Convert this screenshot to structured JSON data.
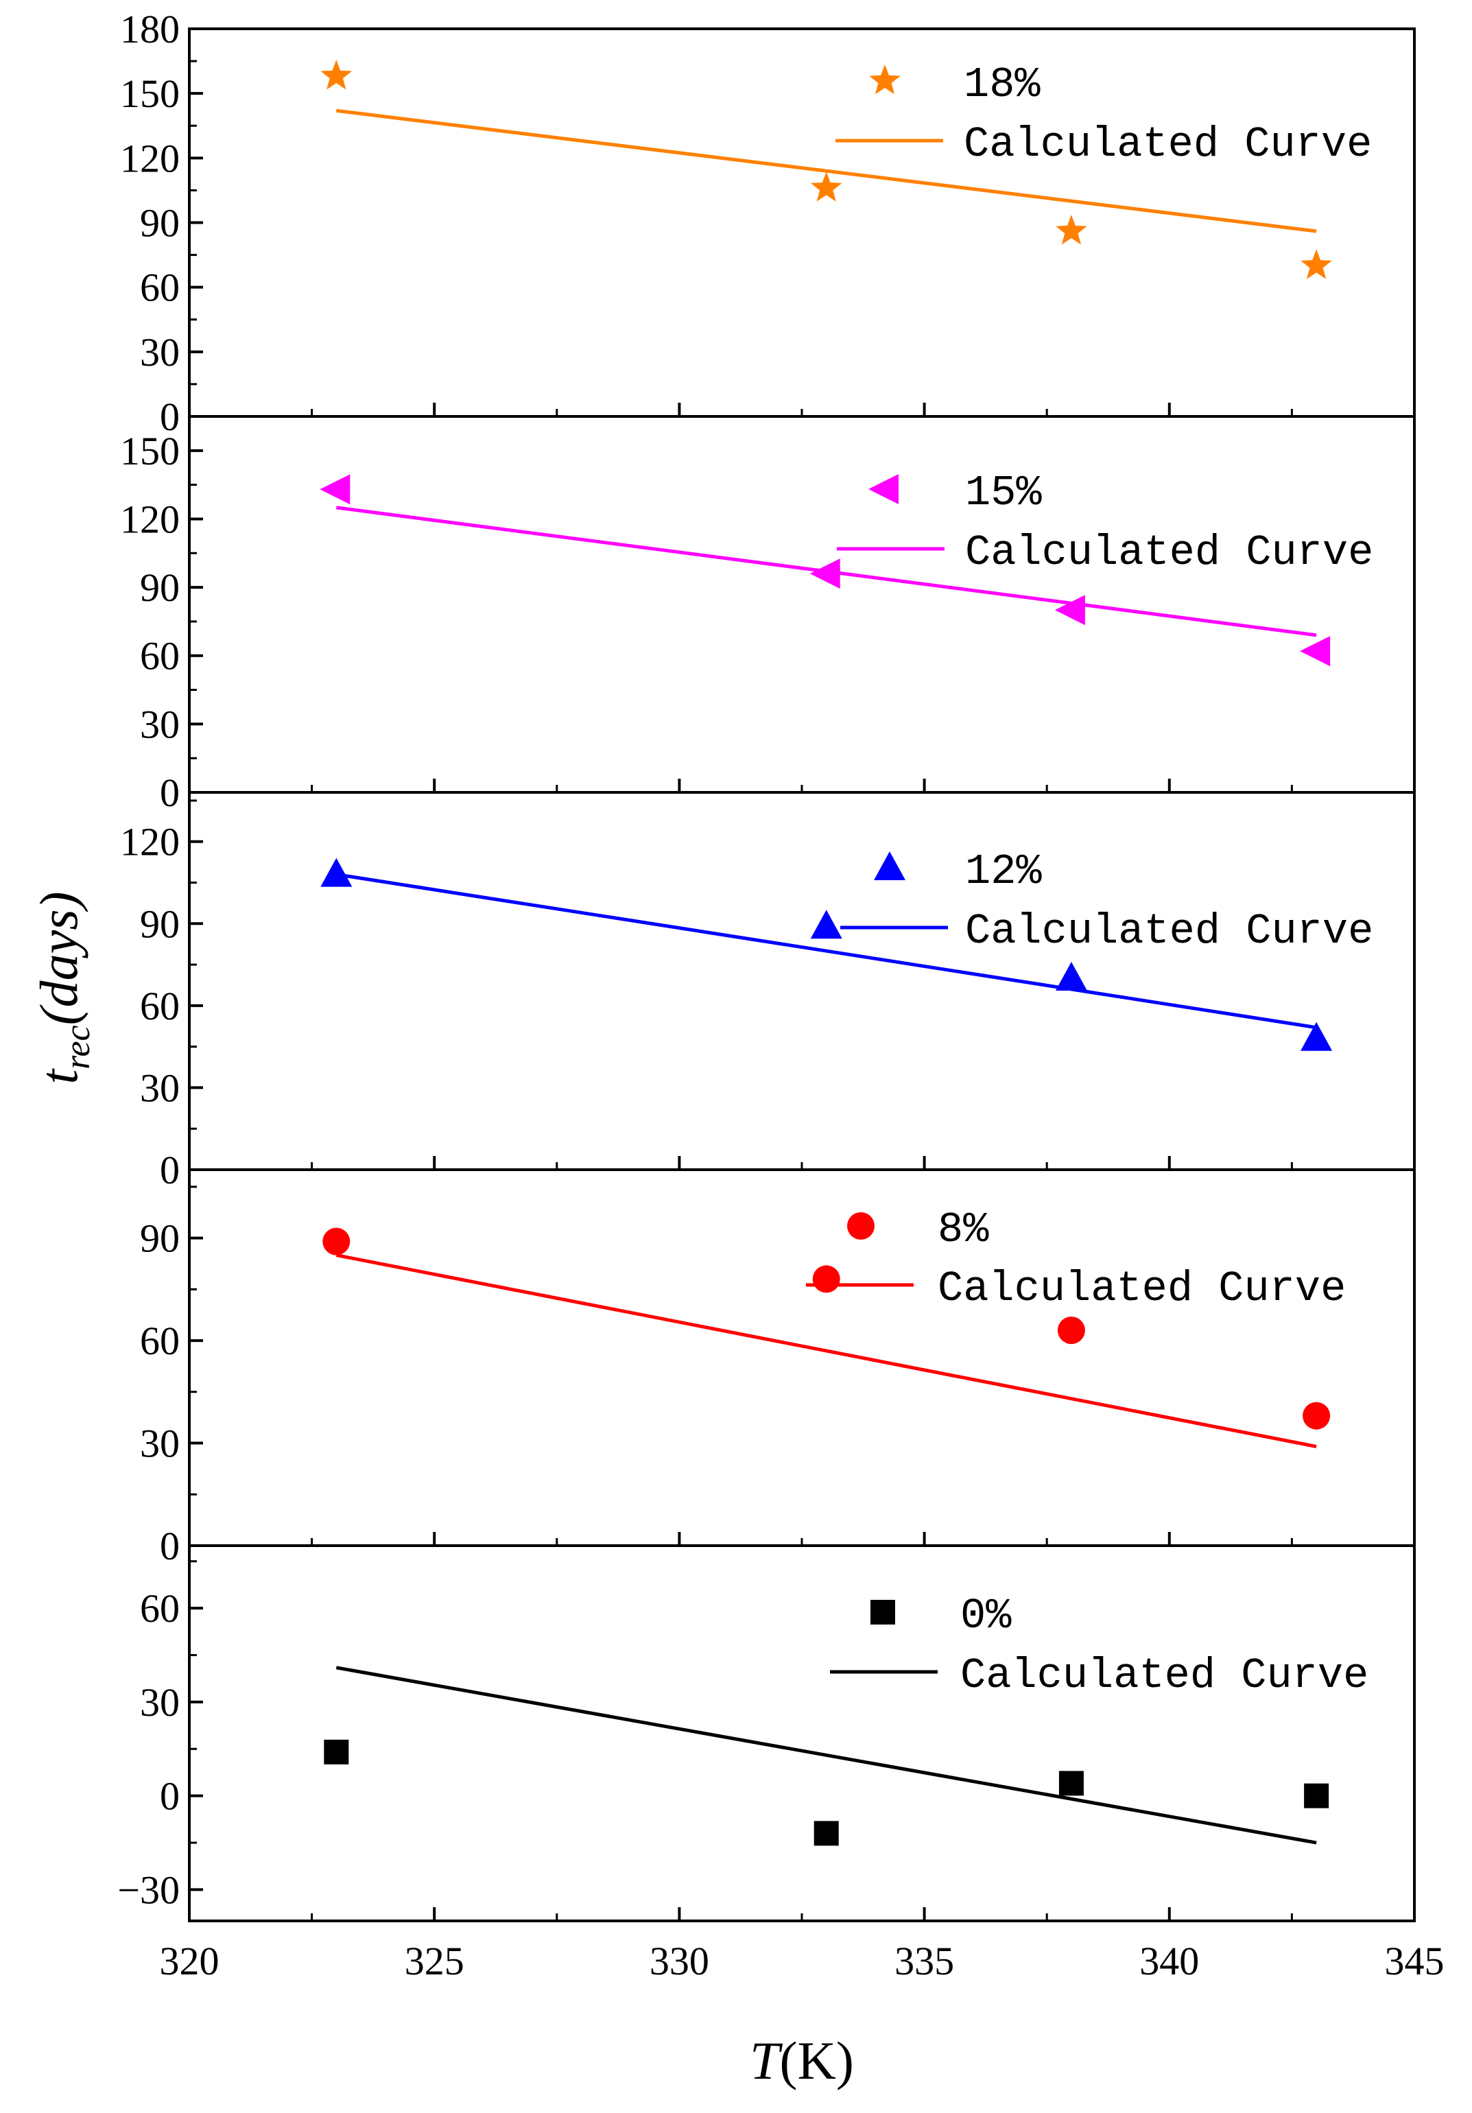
{
  "chart_data": {
    "type": "scatter",
    "layout": "stacked",
    "xlabel": {
      "italic": "T",
      "rest": "(K)"
    },
    "ylabel": {
      "main": "t",
      "sub": "rec",
      "rest": "(days)"
    },
    "xlim": [
      320,
      345
    ],
    "xticks": [
      320,
      325,
      330,
      335,
      340,
      345
    ],
    "x_minor_step": 2.5,
    "panels": [
      {
        "name": "18%",
        "marker": "star",
        "color": "#ff8000",
        "ylim": [
          0,
          180
        ],
        "yticks": [
          0,
          30,
          60,
          90,
          120,
          150,
          180
        ],
        "points": {
          "x": [
            323,
            333,
            338,
            343
          ],
          "y": [
            158,
            106,
            86,
            70
          ]
        },
        "fit": {
          "x": [
            323,
            343
          ],
          "y": [
            142,
            86
          ]
        },
        "legend": {
          "marker_label": "18%",
          "line_label": "Calculated Curve"
        }
      },
      {
        "name": "15%",
        "marker": "triangle-left",
        "color": "#ff00ff",
        "ylim": [
          0,
          165
        ],
        "yticks": [
          0,
          30,
          60,
          90,
          120,
          150
        ],
        "points": {
          "x": [
            323,
            333,
            338,
            343
          ],
          "y": [
            133,
            96,
            80,
            62
          ]
        },
        "fit": {
          "x": [
            323,
            343
          ],
          "y": [
            125,
            69
          ]
        },
        "legend": {
          "marker_label": "15%",
          "line_label": "Calculated Curve"
        }
      },
      {
        "name": "12%",
        "marker": "triangle-up",
        "color": "#0000ff",
        "ylim": [
          0,
          138
        ],
        "yticks": [
          0,
          30,
          60,
          90,
          120
        ],
        "points": {
          "x": [
            323,
            333,
            338,
            343
          ],
          "y": [
            108,
            89,
            70,
            48
          ]
        },
        "fit": {
          "x": [
            323,
            343
          ],
          "y": [
            108,
            52
          ]
        },
        "legend": {
          "marker_label": "12%",
          "line_label": "Calculated Curve"
        }
      },
      {
        "name": "8%",
        "marker": "circle",
        "color": "#ff0000",
        "ylim": [
          0,
          110
        ],
        "yticks": [
          0,
          30,
          60,
          90
        ],
        "points": {
          "x": [
            323,
            333,
            338,
            343
          ],
          "y": [
            89,
            78,
            63,
            38
          ]
        },
        "fit": {
          "x": [
            323,
            343
          ],
          "y": [
            85,
            29
          ]
        },
        "legend": {
          "marker_label": "8%",
          "line_label": "Calculated Curve"
        }
      },
      {
        "name": "0%",
        "marker": "square",
        "color": "#000000",
        "ylim": [
          -40,
          80
        ],
        "yticks": [
          -30,
          0,
          30,
          60
        ],
        "points": {
          "x": [
            323,
            333,
            338,
            343
          ],
          "y": [
            14,
            -12,
            4,
            0
          ]
        },
        "fit": {
          "x": [
            323,
            343
          ],
          "y": [
            41,
            -15
          ]
        },
        "legend": {
          "marker_label": "0%",
          "line_label": "Calculated Curve"
        }
      }
    ]
  }
}
